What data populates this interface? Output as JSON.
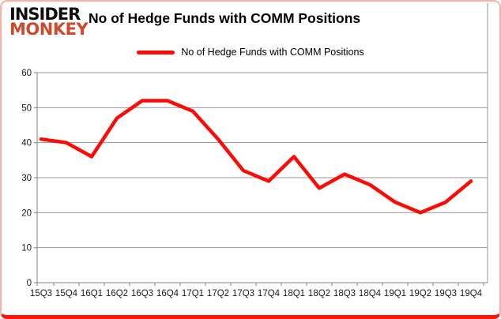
{
  "logo": {
    "top": "INSIDER",
    "bottom": "MONKEY"
  },
  "header": {
    "title": "No of Hedge Funds with COMM Positions"
  },
  "legend": {
    "label": "No of Hedge Funds with COMM Positions"
  },
  "chart_data": {
    "type": "line",
    "title": "No of Hedge Funds with COMM Positions",
    "categories": [
      "15Q3",
      "15Q4",
      "16Q1",
      "16Q2",
      "16Q3",
      "16Q4",
      "17Q1",
      "17Q2",
      "17Q3",
      "17Q4",
      "18Q1",
      "18Q2",
      "18Q3",
      "18Q4",
      "19Q1",
      "19Q2",
      "19Q3",
      "19Q4"
    ],
    "series": [
      {
        "name": "No of Hedge Funds with COMM Positions",
        "color": "#fb0b06",
        "values": [
          41,
          40,
          36,
          47,
          52,
          52,
          49,
          41,
          32,
          29,
          36,
          27,
          31,
          28,
          23,
          20,
          23,
          29
        ]
      }
    ],
    "xlabel": "",
    "ylabel": "",
    "ylim": [
      0,
      60
    ],
    "yticks": [
      0,
      10,
      20,
      30,
      40,
      50,
      60
    ],
    "grid": true,
    "legend_position": "top center"
  },
  "colors": {
    "series_line": "#fb0b06",
    "gridline": "#969696",
    "axis_line": "#808080",
    "tick_text": "#1a1a1a",
    "logo_black": "#0d0d0d",
    "logo_red": "#ce4a2f",
    "frame_border": "#fb1407",
    "background": "#ffffff"
  }
}
